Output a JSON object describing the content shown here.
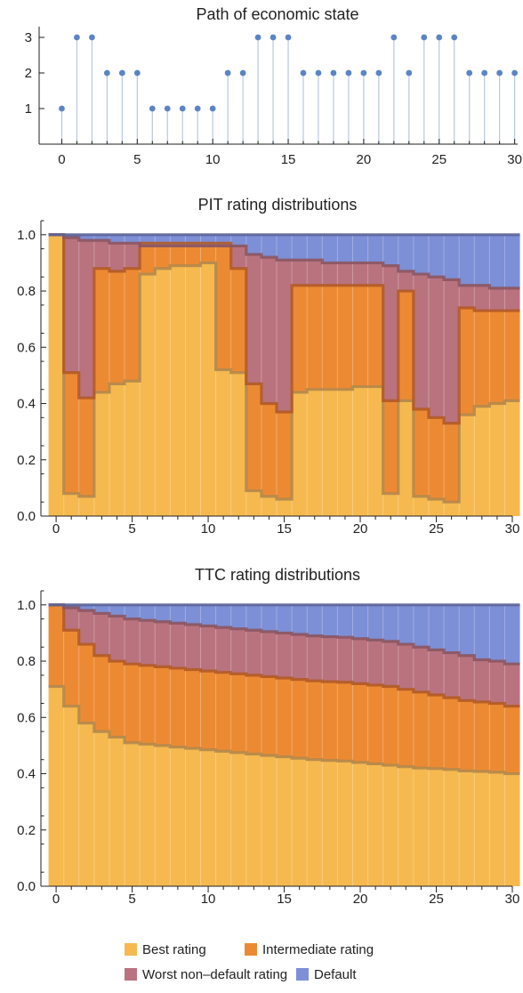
{
  "chart_data": [
    {
      "type": "scatter",
      "title": "Path of economic state",
      "xlabel": "",
      "ylabel": "",
      "x": [
        0,
        1,
        2,
        3,
        4,
        5,
        6,
        7,
        8,
        9,
        10,
        11,
        12,
        13,
        14,
        15,
        16,
        17,
        18,
        19,
        20,
        21,
        22,
        23,
        24,
        25,
        26,
        27,
        28,
        29,
        30
      ],
      "values": [
        1,
        3,
        3,
        2,
        2,
        2,
        1,
        1,
        1,
        1,
        1,
        2,
        2,
        3,
        3,
        3,
        2,
        2,
        2,
        2,
        2,
        2,
        3,
        2,
        3,
        3,
        3,
        2,
        2,
        2,
        2
      ],
      "xlim": [
        -1.5,
        30.2
      ],
      "ylim": [
        0,
        3.3
      ],
      "xticks": [
        0,
        5,
        10,
        15,
        20,
        25,
        30
      ],
      "yticks": [
        1,
        2,
        3
      ],
      "color": "#5b84c4"
    },
    {
      "type": "area",
      "title": "PIT rating distributions",
      "xlabel": "",
      "ylabel": "",
      "x": [
        0,
        1,
        2,
        3,
        4,
        5,
        6,
        7,
        8,
        9,
        10,
        11,
        12,
        13,
        14,
        15,
        16,
        17,
        18,
        19,
        20,
        21,
        22,
        23,
        24,
        25,
        26,
        27,
        28,
        29,
        30
      ],
      "xlim": [
        -0.5,
        30.5
      ],
      "ylim": [
        0,
        1.05
      ],
      "xticks": [
        0,
        5,
        10,
        15,
        20,
        25,
        30
      ],
      "yticks": [
        0.0,
        0.2,
        0.4,
        0.6,
        0.8,
        1.0
      ],
      "ytick_labels": [
        "0.0",
        "0.2",
        "0.4",
        "0.6",
        "0.8",
        "1.0"
      ],
      "series": [
        {
          "name": "Best rating",
          "values": [
            1.0,
            0.08,
            0.07,
            0.44,
            0.47,
            0.48,
            0.86,
            0.88,
            0.89,
            0.89,
            0.9,
            0.52,
            0.51,
            0.09,
            0.07,
            0.06,
            0.44,
            0.45,
            0.45,
            0.45,
            0.46,
            0.46,
            0.08,
            0.41,
            0.07,
            0.06,
            0.05,
            0.36,
            0.39,
            0.4,
            0.41
          ]
        },
        {
          "name": "Intermediate rating",
          "values": [
            1.0,
            0.51,
            0.42,
            0.88,
            0.87,
            0.88,
            0.97,
            0.97,
            0.97,
            0.97,
            0.97,
            0.97,
            0.88,
            0.47,
            0.4,
            0.37,
            0.82,
            0.82,
            0.82,
            0.82,
            0.82,
            0.82,
            0.41,
            0.8,
            0.38,
            0.35,
            0.33,
            0.74,
            0.73,
            0.73,
            0.73
          ]
        },
        {
          "name": "Worst non-default rating",
          "values": [
            1.0,
            0.99,
            0.98,
            0.98,
            0.97,
            0.97,
            0.96,
            0.96,
            0.96,
            0.96,
            0.96,
            0.96,
            0.96,
            0.93,
            0.92,
            0.91,
            0.91,
            0.91,
            0.9,
            0.9,
            0.9,
            0.9,
            0.89,
            0.87,
            0.86,
            0.85,
            0.84,
            0.82,
            0.82,
            0.81,
            0.81
          ]
        },
        {
          "name": "Default",
          "values": [
            1.0,
            1.0,
            1.0,
            1.0,
            1.0,
            1.0,
            1.0,
            1.0,
            1.0,
            1.0,
            1.0,
            1.0,
            1.0,
            1.0,
            1.0,
            1.0,
            1.0,
            1.0,
            1.0,
            1.0,
            1.0,
            1.0,
            1.0,
            1.0,
            1.0,
            1.0,
            1.0,
            1.0,
            1.0,
            1.0,
            1.0
          ]
        }
      ]
    },
    {
      "type": "area",
      "title": "TTC rating distributions",
      "xlabel": "",
      "ylabel": "",
      "x": [
        0,
        1,
        2,
        3,
        4,
        5,
        6,
        7,
        8,
        9,
        10,
        11,
        12,
        13,
        14,
        15,
        16,
        17,
        18,
        19,
        20,
        21,
        22,
        23,
        24,
        25,
        26,
        27,
        28,
        29,
        30
      ],
      "xlim": [
        -0.5,
        30.5
      ],
      "ylim": [
        0,
        1.05
      ],
      "xticks": [
        0,
        5,
        10,
        15,
        20,
        25,
        30
      ],
      "yticks": [
        0.0,
        0.2,
        0.4,
        0.6,
        0.8,
        1.0
      ],
      "ytick_labels": [
        "0.0",
        "0.2",
        "0.4",
        "0.6",
        "0.8",
        "1.0"
      ],
      "series": [
        {
          "name": "Best rating",
          "values": [
            0.71,
            0.64,
            0.58,
            0.55,
            0.53,
            0.51,
            0.505,
            0.5,
            0.495,
            0.49,
            0.485,
            0.48,
            0.475,
            0.47,
            0.465,
            0.46,
            0.455,
            0.45,
            0.447,
            0.445,
            0.44,
            0.435,
            0.43,
            0.425,
            0.42,
            0.418,
            0.415,
            0.41,
            0.408,
            0.405,
            0.4
          ]
        },
        {
          "name": "Intermediate rating",
          "values": [
            1.0,
            0.91,
            0.86,
            0.82,
            0.8,
            0.79,
            0.785,
            0.78,
            0.775,
            0.77,
            0.765,
            0.76,
            0.755,
            0.75,
            0.745,
            0.74,
            0.735,
            0.73,
            0.727,
            0.725,
            0.72,
            0.715,
            0.71,
            0.7,
            0.69,
            0.68,
            0.67,
            0.66,
            0.655,
            0.65,
            0.64
          ]
        },
        {
          "name": "Worst non-default rating",
          "values": [
            1.0,
            0.99,
            0.98,
            0.97,
            0.96,
            0.95,
            0.945,
            0.94,
            0.935,
            0.93,
            0.925,
            0.92,
            0.915,
            0.91,
            0.905,
            0.9,
            0.895,
            0.89,
            0.887,
            0.885,
            0.88,
            0.875,
            0.87,
            0.86,
            0.85,
            0.84,
            0.83,
            0.82,
            0.805,
            0.8,
            0.79
          ]
        },
        {
          "name": "Default",
          "values": [
            1.0,
            1.0,
            1.0,
            1.0,
            1.0,
            1.0,
            1.0,
            1.0,
            1.0,
            1.0,
            1.0,
            1.0,
            1.0,
            1.0,
            1.0,
            1.0,
            1.0,
            1.0,
            1.0,
            1.0,
            1.0,
            1.0,
            1.0,
            1.0,
            1.0,
            1.0,
            1.0,
            1.0,
            1.0,
            1.0,
            1.0
          ]
        }
      ]
    }
  ],
  "legend": {
    "placement": "bottom",
    "items": [
      {
        "label": "Best rating",
        "color": "#f6b94f"
      },
      {
        "label": "Intermediate rating",
        "color": "#ec8a33"
      },
      {
        "label": "Worst non–default rating",
        "color": "#b9737f"
      },
      {
        "label": "Default",
        "color": "#7d8fd6"
      }
    ]
  },
  "colors": {
    "fill": [
      "#f6b94f",
      "#ec8a33",
      "#b9737f",
      "#7d8fd6"
    ],
    "edge": [
      "#b4884b",
      "#b35a26",
      "#8c5560",
      "#5b6399"
    ],
    "axis": "#222222",
    "stem": "#b8c8e0",
    "point": "#5b84c4"
  }
}
